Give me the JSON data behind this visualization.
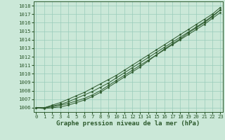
{
  "background_color": "#cbe8d8",
  "grid_color": "#99ccbb",
  "line_color": "#2d5a2d",
  "marker_color": "#2d5a2d",
  "xlabel": "Graphe pression niveau de la mer (hPa)",
  "xlabel_fontsize": 6.5,
  "ylim": [
    1005.5,
    1018.5
  ],
  "xlim": [
    -0.3,
    23.3
  ],
  "yticks": [
    1006,
    1007,
    1008,
    1009,
    1010,
    1011,
    1012,
    1013,
    1014,
    1015,
    1016,
    1017,
    1018
  ],
  "xticks": [
    0,
    1,
    2,
    3,
    4,
    5,
    6,
    7,
    8,
    9,
    10,
    11,
    12,
    13,
    14,
    15,
    16,
    17,
    18,
    19,
    20,
    21,
    22,
    23
  ],
  "series": [
    [
      1006.0,
      1006.0,
      1006.1,
      1006.3,
      1006.5,
      1006.8,
      1007.1,
      1007.5,
      1008.0,
      1008.6,
      1009.2,
      1009.8,
      1010.4,
      1011.0,
      1011.6,
      1012.2,
      1012.8,
      1013.4,
      1014.0,
      1014.6,
      1015.2,
      1015.8,
      1016.5,
      1017.2
    ],
    [
      1006.0,
      1005.9,
      1006.0,
      1006.1,
      1006.3,
      1006.6,
      1006.9,
      1007.3,
      1007.8,
      1008.4,
      1009.0,
      1009.6,
      1010.2,
      1010.8,
      1011.5,
      1012.2,
      1012.9,
      1013.5,
      1014.1,
      1014.8,
      1015.4,
      1016.0,
      1016.7,
      1017.5
    ],
    [
      1006.0,
      1006.0,
      1006.2,
      1006.4,
      1006.7,
      1007.1,
      1007.5,
      1007.9,
      1008.4,
      1008.9,
      1009.5,
      1010.1,
      1010.7,
      1011.3,
      1011.9,
      1012.5,
      1013.1,
      1013.7,
      1014.3,
      1014.9,
      1015.5,
      1016.1,
      1016.8,
      1017.5
    ],
    [
      1006.0,
      1006.0,
      1006.3,
      1006.6,
      1007.0,
      1007.4,
      1007.8,
      1008.3,
      1008.8,
      1009.3,
      1009.8,
      1010.4,
      1011.0,
      1011.6,
      1012.2,
      1012.8,
      1013.4,
      1014.0,
      1014.6,
      1015.2,
      1015.8,
      1016.4,
      1017.0,
      1017.8
    ]
  ]
}
